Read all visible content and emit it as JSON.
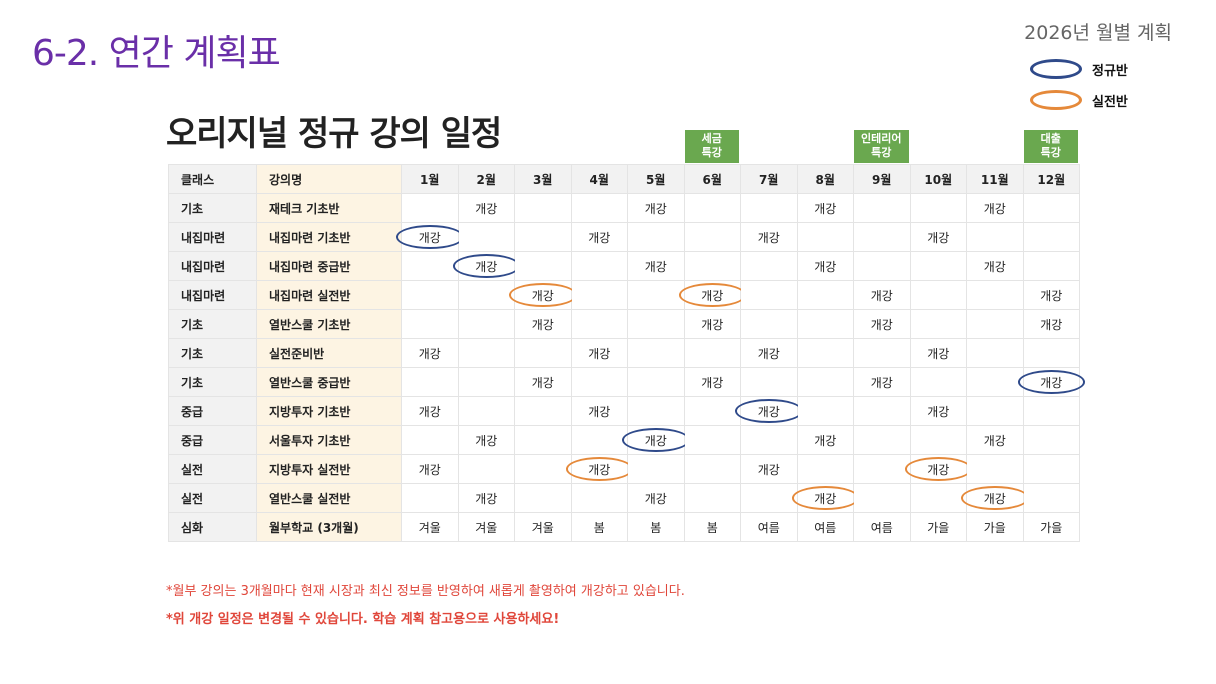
{
  "slide_title": "6-2. 연간 계획표",
  "top_right_label": "2026년 월별 계획",
  "legend": [
    {
      "label": "정규반",
      "type": "regular",
      "color": "#2f4a8a"
    },
    {
      "label": "실전반",
      "type": "practical",
      "color": "#e5893a"
    }
  ],
  "doc_title": "오리지널 정규 강의 일정",
  "special_labels": [
    {
      "month_index": 5,
      "line1": "세금",
      "line2": "특강"
    },
    {
      "month_index": 8,
      "line1": "인테리어",
      "line2": "특강"
    },
    {
      "month_index": 11,
      "line1": "대출",
      "line2": "특강"
    }
  ],
  "table": {
    "headers": {
      "class": "클래스",
      "course": "강의명",
      "months": [
        "1월",
        "2월",
        "3월",
        "4월",
        "5월",
        "6월",
        "7월",
        "8월",
        "9월",
        "10월",
        "11월",
        "12월"
      ]
    },
    "rows": [
      {
        "class": "기초",
        "course": "재테크 기초반",
        "cells": [
          "",
          "개강",
          "",
          "",
          "개강",
          "",
          "",
          "개강",
          "",
          "",
          "개강",
          ""
        ],
        "circled": {}
      },
      {
        "class": "내집마련",
        "course": "내집마련 기초반",
        "cells": [
          "개강",
          "",
          "",
          "개강",
          "",
          "",
          "개강",
          "",
          "",
          "개강",
          "",
          ""
        ],
        "circled": {
          "0": "regular"
        }
      },
      {
        "class": "내집마련",
        "course": "내집마련 중급반",
        "cells": [
          "",
          "개강",
          "",
          "",
          "개강",
          "",
          "",
          "개강",
          "",
          "",
          "개강",
          ""
        ],
        "circled": {
          "1": "regular"
        }
      },
      {
        "class": "내집마련",
        "course": "내집마련 실전반",
        "cells": [
          "",
          "",
          "개강",
          "",
          "",
          "개강",
          "",
          "",
          "개강",
          "",
          "",
          "개강"
        ],
        "circled": {
          "2": "practical",
          "5": "practical"
        }
      },
      {
        "class": "기초",
        "course": "열반스쿨 기초반",
        "cells": [
          "",
          "",
          "개강",
          "",
          "",
          "개강",
          "",
          "",
          "개강",
          "",
          "",
          "개강"
        ],
        "circled": {}
      },
      {
        "class": "기초",
        "course": "실전준비반",
        "cells": [
          "개강",
          "",
          "",
          "개강",
          "",
          "",
          "개강",
          "",
          "",
          "개강",
          "",
          ""
        ],
        "circled": {}
      },
      {
        "class": "기초",
        "course": "열반스쿨 중급반",
        "cells": [
          "",
          "",
          "개강",
          "",
          "",
          "개강",
          "",
          "",
          "개강",
          "",
          "",
          "개강"
        ],
        "circled": {
          "11": "regular"
        }
      },
      {
        "class": "중급",
        "course": "지방투자 기초반",
        "cells": [
          "개강",
          "",
          "",
          "개강",
          "",
          "",
          "개강",
          "",
          "",
          "개강",
          "",
          ""
        ],
        "circled": {
          "6": "regular"
        }
      },
      {
        "class": "중급",
        "course": "서울투자 기초반",
        "cells": [
          "",
          "개강",
          "",
          "",
          "개강",
          "",
          "",
          "개강",
          "",
          "",
          "개강",
          ""
        ],
        "circled": {
          "4": "regular"
        }
      },
      {
        "class": "실전",
        "course": "지방투자 실전반",
        "cells": [
          "개강",
          "",
          "",
          "개강",
          "",
          "",
          "개강",
          "",
          "",
          "개강",
          "",
          ""
        ],
        "circled": {
          "3": "practical",
          "9": "practical"
        }
      },
      {
        "class": "실전",
        "course": "열반스쿨 실전반",
        "cells": [
          "",
          "개강",
          "",
          "",
          "개강",
          "",
          "",
          "개강",
          "",
          "",
          "개강",
          ""
        ],
        "circled": {
          "7": "practical",
          "10": "practical"
        }
      },
      {
        "class": "심화",
        "course": "월부학교 (3개월)",
        "cells": [
          "겨울",
          "겨울",
          "겨울",
          "봄",
          "봄",
          "봄",
          "여름",
          "여름",
          "여름",
          "가을",
          "가을",
          "가을"
        ],
        "circled": {}
      }
    ]
  },
  "notes": [
    "*월부 강의는 3개월마다 현재 시장과 최신 정보를 반영하여 새롭게 촬영하여 개강하고 있습니다.",
    "*위 개강 일정은 변경될 수 있습니다. 학습 계획 참고용으로 사용하세요!"
  ]
}
